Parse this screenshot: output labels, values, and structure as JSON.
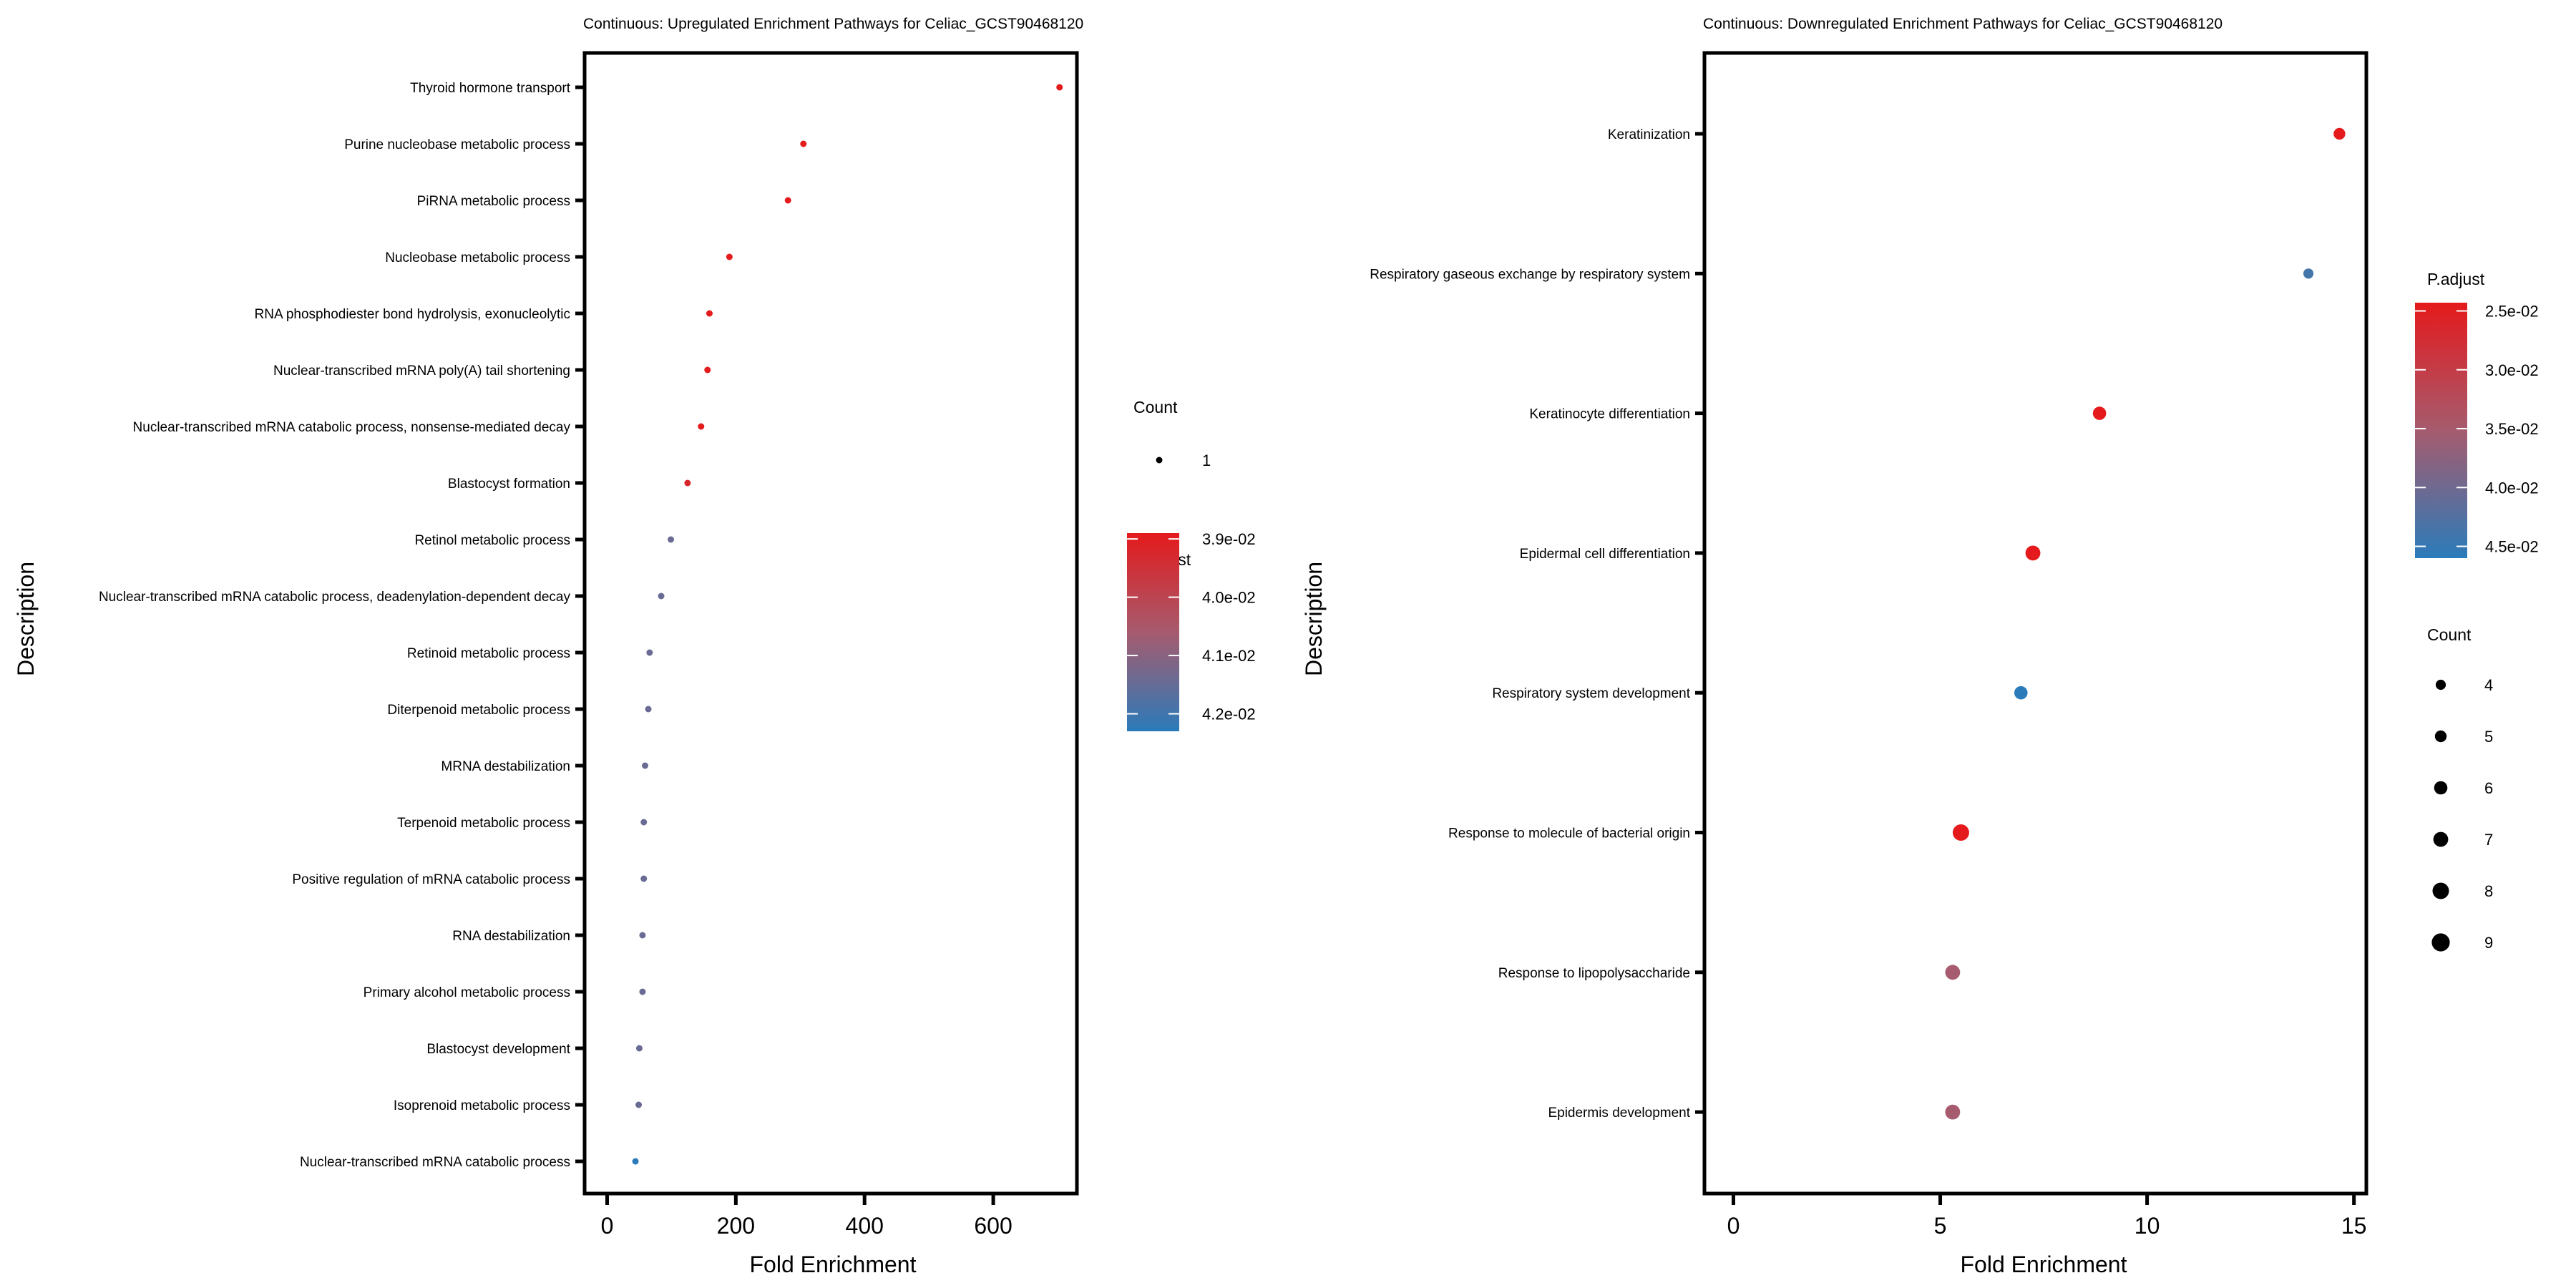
{
  "chart_data": [
    {
      "type": "scatter",
      "title": "Continuous: Upregulated Enrichment Pathways for Celiac_GCST90468120",
      "xlabel": "Fold Enrichment",
      "ylabel": "Description",
      "xlim": [
        -35,
        730
      ],
      "xticks": [
        0,
        200,
        400,
        600
      ],
      "xtick_labels": [
        "0",
        "200",
        "400",
        "600"
      ],
      "categories": [
        "Thyroid hormone transport",
        "Purine nucleobase metabolic process",
        "PiRNA metabolic process",
        "Nucleobase metabolic process",
        "RNA phosphodiester bond hydrolysis, exonucleolytic",
        "Nuclear-transcribed mRNA poly(A) tail shortening",
        "Nuclear-transcribed mRNA catabolic process, nonsense-mediated decay",
        "Blastocyst formation",
        "Retinol metabolic process",
        "Nuclear-transcribed mRNA catabolic process, deadenylation-dependent decay",
        "Retinoid metabolic process",
        "Diterpenoid metabolic process",
        "MRNA destabilization",
        "Terpenoid metabolic process",
        "Positive regulation of mRNA catabolic process",
        "RNA destabilization",
        "Primary alcohol metabolic process",
        "Blastocyst development",
        "Isoprenoid metabolic process",
        "Nuclear-transcribed mRNA catabolic process"
      ],
      "fold_enrichment": [
        703,
        305,
        281,
        190,
        159,
        156,
        146,
        125,
        99,
        84,
        66,
        64,
        59,
        57,
        57,
        55,
        55,
        50,
        49,
        44
      ],
      "count": [
        1,
        1,
        1,
        1,
        1,
        1,
        1,
        1,
        1,
        1,
        1,
        1,
        1,
        1,
        1,
        1,
        1,
        1,
        1,
        1
      ],
      "padjust_color_fraction": [
        0,
        0,
        0,
        0,
        0,
        0,
        0,
        0.1,
        0.75,
        0.75,
        0.75,
        0.75,
        0.75,
        0.75,
        0.75,
        0.75,
        0.75,
        0.75,
        0.75,
        1
      ],
      "legend_count": {
        "title": "Count",
        "items": [
          {
            "label": "1",
            "value": 1
          }
        ]
      },
      "legend_color": {
        "title": "P.adjust",
        "labels": [
          "3.9e-02",
          "4.0e-02",
          "4.1e-02",
          "4.2e-02"
        ],
        "range": [
          0.0389,
          0.0423
        ],
        "values": [
          0.039,
          0.04,
          0.041,
          0.042
        ],
        "low_color": "#E41A1C",
        "high_color": "#2B7BBA"
      }
    },
    {
      "type": "scatter",
      "title": "Continuous: Downregulated Enrichment Pathways for Celiac_GCST90468120",
      "xlabel": "Fold Enrichment",
      "ylabel": "Description",
      "xlim": [
        -0.7,
        15.3
      ],
      "xticks": [
        0,
        5,
        10,
        15
      ],
      "xtick_labels": [
        "0",
        "5",
        "10",
        "15"
      ],
      "categories": [
        "Keratinization",
        "Respiratory gaseous exchange by respiratory system",
        "Keratinocyte differentiation",
        "Epidermal cell differentiation",
        "Respiratory system development",
        "Response to molecule of bacterial origin",
        "Response to lipopolysaccharide",
        "Epidermis development"
      ],
      "fold_enrichment": [
        14.65,
        13.9,
        8.85,
        7.24,
        6.95,
        5.5,
        5.3,
        5.3
      ],
      "count": [
        5,
        4,
        6,
        7,
        6,
        8,
        7,
        7
      ],
      "padjust_color_fraction": [
        0,
        0.9,
        0,
        0,
        1,
        0,
        0.5,
        0.5
      ],
      "legend_count": {
        "title": "Count",
        "items": [
          {
            "label": "4",
            "value": 4
          },
          {
            "label": "5",
            "value": 5
          },
          {
            "label": "6",
            "value": 6
          },
          {
            "label": "7",
            "value": 7
          },
          {
            "label": "8",
            "value": 8
          },
          {
            "label": "9",
            "value": 9
          }
        ]
      },
      "legend_color": {
        "title": "P.adjust",
        "labels": [
          "2.5e-02",
          "3.0e-02",
          "3.5e-02",
          "4.0e-02",
          "4.5e-02"
        ],
        "range": [
          0.0243,
          0.046
        ],
        "values": [
          0.025,
          0.03,
          0.035,
          0.04,
          0.045
        ],
        "low_color": "#E41A1C",
        "high_color": "#2B7BBA"
      }
    }
  ]
}
